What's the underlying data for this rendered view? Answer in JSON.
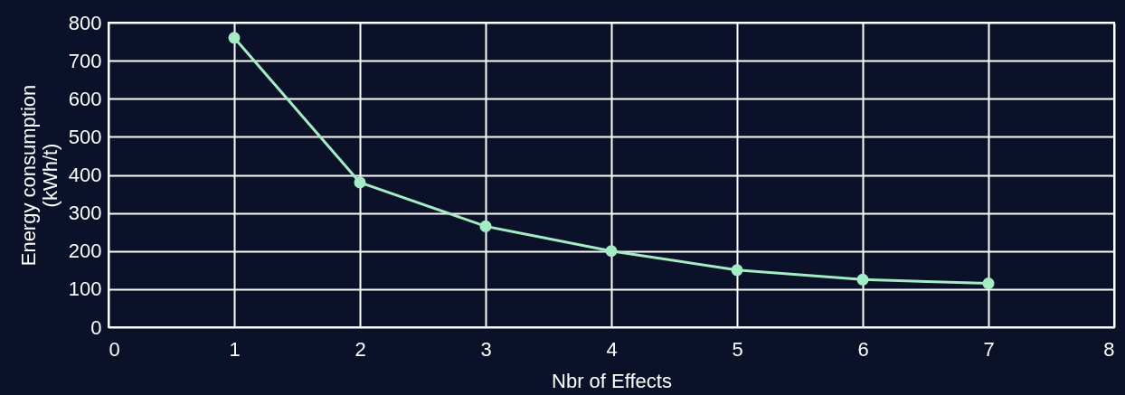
{
  "chart_data": {
    "type": "line",
    "xlabel": "Nbr of Effects",
    "ylabel": "Energy consumption\n(kWh/t)",
    "x": [
      1,
      2,
      3,
      4,
      5,
      6,
      7
    ],
    "series": [
      {
        "color": "#a3ecc4",
        "values": [
          760,
          380,
          265,
          200,
          150,
          125,
          115
        ]
      }
    ],
    "xlim": [
      0,
      8
    ],
    "xticks": [
      0,
      1,
      2,
      3,
      4,
      5,
      6,
      7,
      8
    ],
    "ylim": [
      0,
      800
    ],
    "yticks": [
      0,
      100,
      200,
      300,
      400,
      500,
      600,
      700,
      800
    ],
    "grid": true,
    "marker": "circle",
    "line_style": "solid"
  }
}
